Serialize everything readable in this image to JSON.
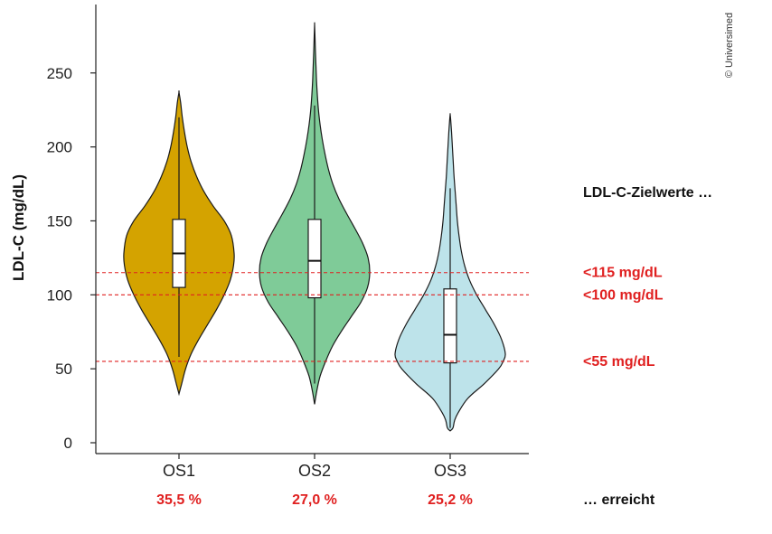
{
  "chart_data": {
    "type": "violin",
    "ylabel": "LDL-C (mg/dL)",
    "ylim": [
      0,
      290
    ],
    "yticks": [
      0,
      50,
      100,
      150,
      200,
      250
    ],
    "categories": [
      "OS1",
      "OS2",
      "OS3"
    ],
    "series": [
      {
        "category": "OS1",
        "color": "#d4a300",
        "min": 33,
        "max": 237,
        "q1": 105,
        "median": 128,
        "q3": 151,
        "whisker_low": 58,
        "whisker_high": 220,
        "density": [
          [
            33,
            0.0
          ],
          [
            40,
            0.05
          ],
          [
            50,
            0.12
          ],
          [
            60,
            0.22
          ],
          [
            70,
            0.36
          ],
          [
            80,
            0.52
          ],
          [
            90,
            0.68
          ],
          [
            100,
            0.82
          ],
          [
            110,
            0.93
          ],
          [
            120,
            0.99
          ],
          [
            128,
            1.0
          ],
          [
            140,
            0.95
          ],
          [
            150,
            0.82
          ],
          [
            160,
            0.62
          ],
          [
            170,
            0.45
          ],
          [
            180,
            0.32
          ],
          [
            190,
            0.22
          ],
          [
            200,
            0.15
          ],
          [
            210,
            0.1
          ],
          [
            220,
            0.06
          ],
          [
            230,
            0.03
          ],
          [
            237,
            0.0
          ]
        ],
        "pct_reached": "35,5 %"
      },
      {
        "category": "OS2",
        "color": "#7fcb98",
        "min": 26,
        "max": 283,
        "q1": 98,
        "median": 123,
        "q3": 151,
        "whisker_low": 40,
        "whisker_high": 228,
        "density": [
          [
            26,
            0.0
          ],
          [
            35,
            0.04
          ],
          [
            45,
            0.1
          ],
          [
            55,
            0.2
          ],
          [
            65,
            0.32
          ],
          [
            75,
            0.48
          ],
          [
            85,
            0.66
          ],
          [
            95,
            0.84
          ],
          [
            105,
            0.96
          ],
          [
            115,
            1.0
          ],
          [
            125,
            0.97
          ],
          [
            135,
            0.87
          ],
          [
            145,
            0.73
          ],
          [
            155,
            0.58
          ],
          [
            165,
            0.44
          ],
          [
            175,
            0.33
          ],
          [
            185,
            0.25
          ],
          [
            195,
            0.19
          ],
          [
            205,
            0.14
          ],
          [
            215,
            0.1
          ],
          [
            225,
            0.07
          ],
          [
            235,
            0.05
          ],
          [
            245,
            0.035
          ],
          [
            255,
            0.025
          ],
          [
            265,
            0.015
          ],
          [
            275,
            0.007
          ],
          [
            283,
            0.0
          ]
        ],
        "pct_reached": "27,0 %"
      },
      {
        "category": "OS3",
        "color": "#bde3ea",
        "min": 8,
        "max": 222,
        "q1": 54,
        "median": 73,
        "q3": 104,
        "whisker_low": 10,
        "whisker_high": 172,
        "density": [
          [
            8,
            0.0
          ],
          [
            10,
            0.05
          ],
          [
            15,
            0.08
          ],
          [
            20,
            0.14
          ],
          [
            30,
            0.32
          ],
          [
            40,
            0.62
          ],
          [
            50,
            0.88
          ],
          [
            55,
            0.96
          ],
          [
            60,
            1.0
          ],
          [
            70,
            0.93
          ],
          [
            80,
            0.8
          ],
          [
            90,
            0.64
          ],
          [
            100,
            0.48
          ],
          [
            110,
            0.35
          ],
          [
            120,
            0.26
          ],
          [
            130,
            0.2
          ],
          [
            140,
            0.16
          ],
          [
            150,
            0.13
          ],
          [
            160,
            0.11
          ],
          [
            170,
            0.09
          ],
          [
            180,
            0.07
          ],
          [
            190,
            0.055
          ],
          [
            200,
            0.04
          ],
          [
            210,
            0.025
          ],
          [
            218,
            0.01
          ],
          [
            222,
            0.0
          ]
        ],
        "pct_reached": "25,2 %"
      }
    ],
    "reference_lines": [
      {
        "value": 115,
        "label": "<115 mg/dL"
      },
      {
        "value": 100,
        "label": "<100 mg/dL"
      },
      {
        "value": 55,
        "label": "<55 mg/dL"
      }
    ],
    "targets_title": "LDL-C-Zielwerte …",
    "reached_label": "… erreicht",
    "reference_color": "#e02020",
    "copyright": "© Universimed"
  }
}
